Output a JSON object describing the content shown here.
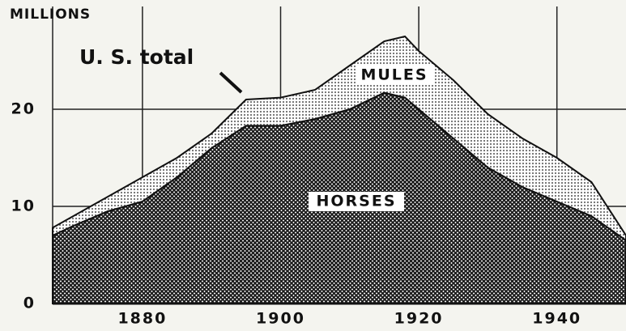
{
  "chart_data": {
    "type": "stacked_area",
    "y_label": "MILLIONS",
    "annotation": "U. S. total",
    "x": [
      1867,
      1870,
      1875,
      1880,
      1885,
      1890,
      1895,
      1900,
      1905,
      1910,
      1915,
      1918,
      1920,
      1925,
      1930,
      1935,
      1940,
      1945,
      1950
    ],
    "series": [
      {
        "name": "HORSES",
        "color": "#1a1a1a",
        "values": [
          7,
          8,
          9.5,
          10.5,
          13,
          16,
          18.3,
          18.3,
          19,
          20,
          21.7,
          21.2,
          20,
          17,
          14,
          12,
          10.5,
          9,
          6.5
        ]
      },
      {
        "name": "MULES",
        "color": "#6a6a6a",
        "values": [
          0.8,
          1,
          1.5,
          2.5,
          2,
          1.5,
          2.7,
          2.9,
          3,
          4.5,
          5.3,
          6.3,
          6,
          6,
          5.5,
          5,
          4.5,
          3.5,
          0.5
        ]
      }
    ],
    "xlim": [
      1867,
      1950
    ],
    "xticks": [
      1880,
      1900,
      1920,
      1940
    ],
    "ylim": [
      0,
      30
    ],
    "yticks": [
      0,
      10,
      20
    ],
    "grid": true
  }
}
